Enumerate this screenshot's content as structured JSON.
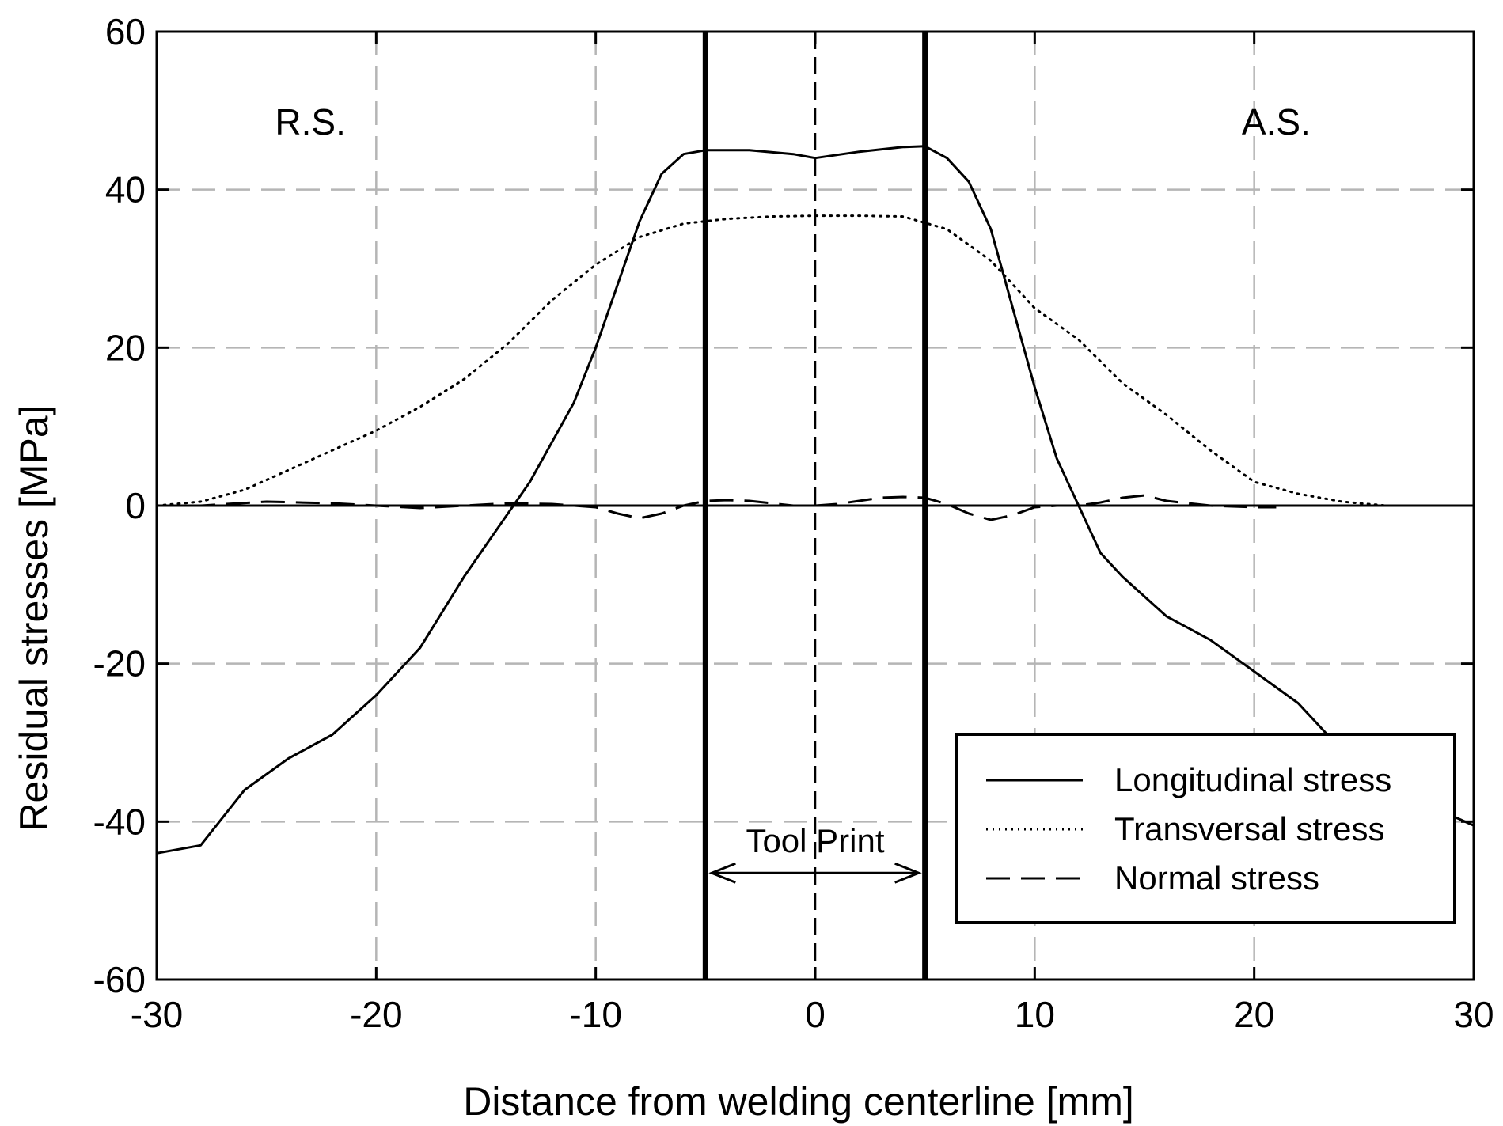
{
  "chart_data": {
    "type": "line",
    "title": "",
    "xlabel": "Distance from welding centerline [mm]",
    "ylabel": "Residual stresses [MPa]",
    "xlim": [
      -30,
      30
    ],
    "ylim": [
      -60,
      60
    ],
    "xticks": [
      -30,
      -20,
      -10,
      0,
      10,
      20,
      30
    ],
    "yticks": [
      -60,
      -40,
      -20,
      0,
      20,
      40,
      60
    ],
    "xtick_labels": [
      "-30",
      "-20",
      "-10",
      "0",
      "10",
      "20",
      "30"
    ],
    "ytick_labels": [
      "-60",
      "-40",
      "-20",
      "0",
      "20",
      "40",
      "60"
    ],
    "grid": true,
    "legend_position": "bottom-right",
    "annotations": {
      "left": "R.S.",
      "right": "A.S.",
      "tool_print": "Tool Print",
      "tool_print_range": [
        -5,
        5
      ]
    },
    "series": [
      {
        "name": "Longitudinal stress",
        "style": "solid",
        "x": [
          -30,
          -28,
          -26,
          -24,
          -22,
          -20,
          -18,
          -16,
          -15,
          -14,
          -13,
          -12,
          -11,
          -10,
          -9,
          -8,
          -7,
          -6,
          -5,
          -3,
          -1,
          0,
          2,
          4,
          5,
          6,
          7,
          8,
          9,
          10,
          11,
          12,
          13,
          14,
          16,
          18,
          20,
          22,
          23,
          24,
          26,
          28,
          30
        ],
        "y": [
          -44,
          -43,
          -36,
          -32,
          -29,
          -24,
          -18,
          -9,
          -5,
          -1,
          3,
          8,
          13,
          20,
          28,
          36,
          42,
          44.5,
          45,
          45,
          44.5,
          44,
          44.8,
          45.4,
          45.5,
          44,
          41,
          35,
          25,
          15,
          6,
          0,
          -6,
          -9,
          -14,
          -17,
          -21,
          -25,
          -28,
          -31,
          -35,
          -38,
          -40.5
        ]
      },
      {
        "name": "Transversal stress",
        "style": "dotted",
        "x": [
          -30,
          -28,
          -26,
          -24,
          -22,
          -20,
          -18,
          -16,
          -14,
          -12,
          -10,
          -8,
          -6,
          -4,
          -2,
          0,
          2,
          4,
          6,
          8,
          10,
          12,
          14,
          16,
          18,
          20,
          22,
          24,
          26,
          28,
          30
        ],
        "y": [
          0,
          0.5,
          2,
          4.5,
          7,
          9.5,
          12.5,
          16,
          20.5,
          26,
          30.5,
          34,
          35.7,
          36.3,
          36.6,
          36.7,
          36.7,
          36.6,
          35,
          31,
          25,
          21,
          15.5,
          11.5,
          7,
          3,
          1.5,
          0.5,
          0,
          0,
          0
        ]
      },
      {
        "name": "Normal stress",
        "style": "dashed",
        "x": [
          -30,
          -28,
          -25,
          -22,
          -20,
          -18,
          -16,
          -14,
          -12,
          -10,
          -9,
          -8,
          -7,
          -6,
          -5,
          -4,
          -3,
          -2,
          -1,
          0,
          1,
          2,
          3,
          4,
          5,
          6,
          7,
          8,
          9,
          10,
          11,
          12,
          13,
          14,
          15,
          16,
          18,
          20,
          21
        ],
        "y": [
          0,
          0,
          0.5,
          0.3,
          0,
          -0.3,
          0,
          0.3,
          0.2,
          -0.2,
          -1,
          -1.6,
          -1,
          0,
          0.6,
          0.7,
          0.6,
          0.3,
          0,
          0,
          0.2,
          0.6,
          1,
          1.1,
          1,
          0.2,
          -1,
          -1.8,
          -1.2,
          -0.2,
          0,
          0,
          0.4,
          1,
          1.3,
          0.6,
          0,
          -0.2,
          -0.2
        ]
      }
    ]
  }
}
